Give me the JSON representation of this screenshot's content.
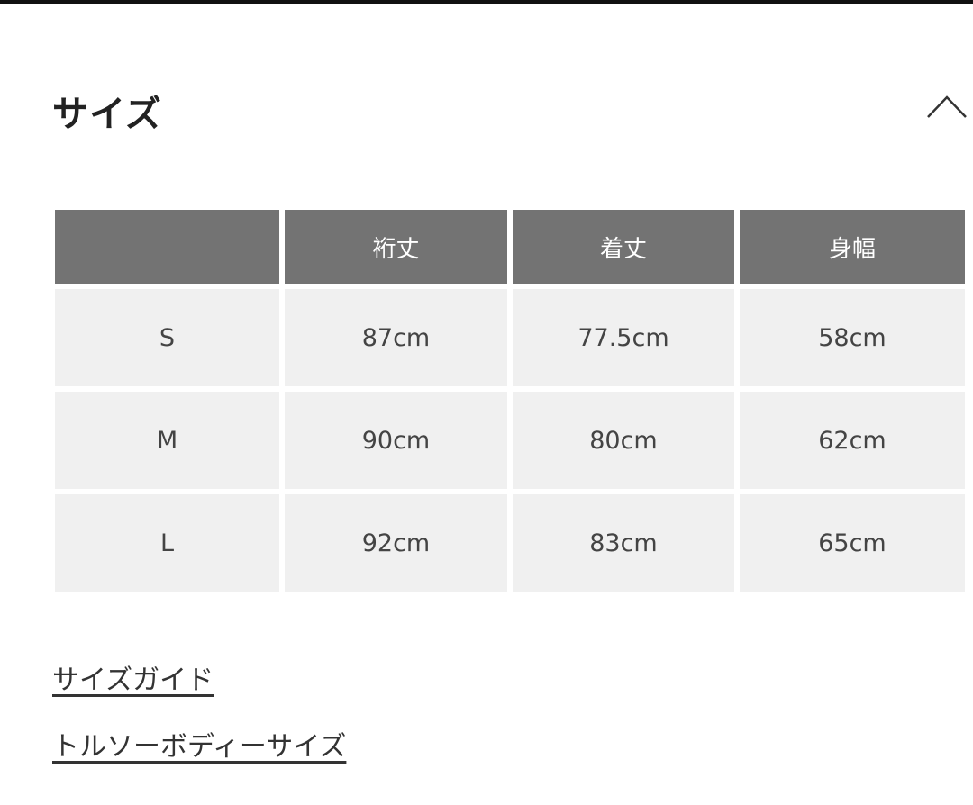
{
  "section_title": "サイズ",
  "collapse_icon": "chevron-up-icon",
  "table": {
    "headers": [
      "",
      "裄丈",
      "着丈",
      "身幅"
    ],
    "rows": [
      [
        "S",
        "87cm",
        "77.5cm",
        "58cm"
      ],
      [
        "M",
        "90cm",
        "80cm",
        "62cm"
      ],
      [
        "L",
        "92cm",
        "83cm",
        "65cm"
      ]
    ]
  },
  "links": {
    "size_guide": "サイズガイド",
    "torso_body_size": "トルソーボディーサイズ"
  },
  "colors": {
    "header_bg": "#737373",
    "cell_bg": "#f0f0f0"
  }
}
